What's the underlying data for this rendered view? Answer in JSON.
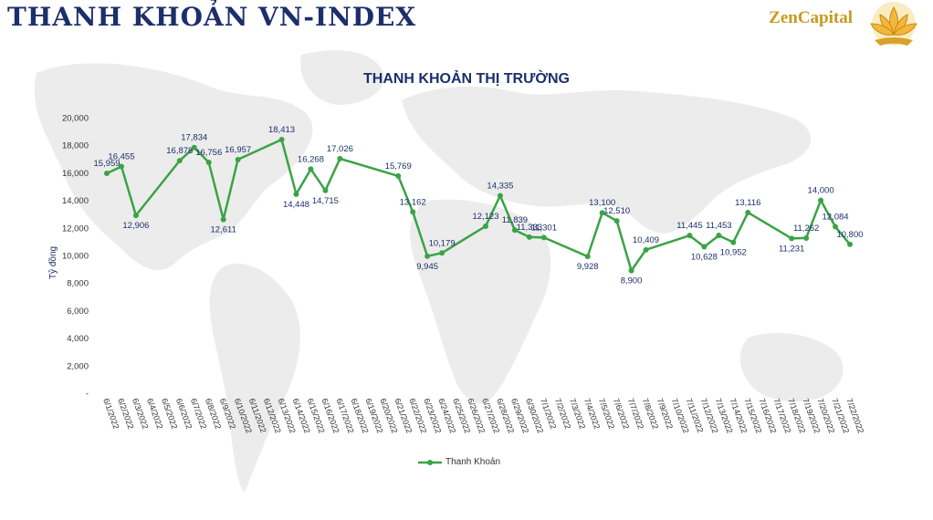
{
  "header": {
    "title": "THANH KHOẢN VN-INDEX",
    "brand": "ZenCapital",
    "logo_icon": "lotus-icon"
  },
  "colors": {
    "line": "#3aa346",
    "title": "#1c2f6b",
    "brand": "#c99a1e",
    "map": "#ececec"
  },
  "chart_data": {
    "type": "line",
    "title": "THANH KHOẢN THỊ TRƯỜNG",
    "ylabel": "Tỷ đồng",
    "xlabel": "",
    "ylim": [
      0,
      20000
    ],
    "yticks": [
      0,
      2000,
      4000,
      6000,
      8000,
      10000,
      12000,
      14000,
      16000,
      18000,
      20000
    ],
    "ytick_labels": [
      "-",
      "2,000",
      "4,000",
      "6,000",
      "8,000",
      "10,000",
      "12,000",
      "14,000",
      "16,000",
      "18,000",
      "20,000"
    ],
    "grid": false,
    "legend_position": "bottom",
    "categories": [
      "6/1/2022",
      "6/2/2022",
      "6/3/2022",
      "6/4/2022",
      "6/5/2022",
      "6/6/2022",
      "6/7/2022",
      "6/8/2022",
      "6/9/2022",
      "6/10/2022",
      "6/11/2022",
      "6/12/2022",
      "6/13/2022",
      "6/14/2022",
      "6/15/2022",
      "6/16/2022",
      "6/17/2022",
      "6/18/2022",
      "6/19/2022",
      "6/20/2022",
      "6/21/2022",
      "6/22/2022",
      "6/23/2022",
      "6/24/2022",
      "6/25/2022",
      "6/26/2022",
      "6/27/2022",
      "6/28/2022",
      "6/29/2022",
      "6/30/2022",
      "7/1/2022",
      "7/2/2022",
      "7/3/2022",
      "7/4/2022",
      "7/5/2022",
      "7/6/2022",
      "7/7/2022",
      "7/8/2022",
      "7/9/2022",
      "7/10/2022",
      "7/11/2022",
      "7/12/2022",
      "7/13/2022",
      "7/14/2022",
      "7/15/2022",
      "7/16/2022",
      "7/17/2022",
      "7/18/2022",
      "7/19/2022",
      "7/20/2022",
      "7/21/2022",
      "7/22/2022"
    ],
    "series": [
      {
        "name": "Thanh Khoản",
        "points": [
          {
            "x": "6/1/2022",
            "y": 15959,
            "label": "15,959"
          },
          {
            "x": "6/2/2022",
            "y": 16455,
            "label": "16,455"
          },
          {
            "x": "6/3/2022",
            "y": 12906,
            "label": "12,906"
          },
          {
            "x": "6/6/2022",
            "y": 16878,
            "label": "16,878"
          },
          {
            "x": "6/7/2022",
            "y": 17834,
            "label": "17,834"
          },
          {
            "x": "6/8/2022",
            "y": 16756,
            "label": "16,756"
          },
          {
            "x": "6/9/2022",
            "y": 12611,
            "label": "12,611"
          },
          {
            "x": "6/10/2022",
            "y": 16957,
            "label": "16,957"
          },
          {
            "x": "6/13/2022",
            "y": 18413,
            "label": "18,413"
          },
          {
            "x": "6/14/2022",
            "y": 14448,
            "label": "14,448"
          },
          {
            "x": "6/15/2022",
            "y": 16268,
            "label": "16,268"
          },
          {
            "x": "6/16/2022",
            "y": 14715,
            "label": "14,715"
          },
          {
            "x": "6/17/2022",
            "y": 17026,
            "label": "17,026"
          },
          {
            "x": "6/21/2022",
            "y": 15769,
            "label": "15,769"
          },
          {
            "x": "6/22/2022",
            "y": 13162,
            "label": "13,162"
          },
          {
            "x": "6/23/2022",
            "y": 9945,
            "label": "9,945"
          },
          {
            "x": "6/24/2022",
            "y": 10179,
            "label": "10,179"
          },
          {
            "x": "6/27/2022",
            "y": 12123,
            "label": "12,123"
          },
          {
            "x": "6/28/2022",
            "y": 14335,
            "label": "14,335"
          },
          {
            "x": "6/29/2022",
            "y": 11839,
            "label": "11,839"
          },
          {
            "x": "6/30/2022",
            "y": 11333,
            "label": "11,333"
          },
          {
            "x": "7/1/2022",
            "y": 11301,
            "label": "11,301"
          },
          {
            "x": "7/4/2022",
            "y": 9928,
            "label": "9,928"
          },
          {
            "x": "7/5/2022",
            "y": 13100,
            "label": "13,100"
          },
          {
            "x": "7/6/2022",
            "y": 12510,
            "label": "12,510"
          },
          {
            "x": "7/7/2022",
            "y": 8900,
            "label": "8,900"
          },
          {
            "x": "7/8/2022",
            "y": 10409,
            "label": "10,409"
          },
          {
            "x": "7/11/2022",
            "y": 11445,
            "label": "11,445"
          },
          {
            "x": "7/12/2022",
            "y": 10628,
            "label": "10,628"
          },
          {
            "x": "7/13/2022",
            "y": 11453,
            "label": "11,453"
          },
          {
            "x": "7/14/2022",
            "y": 10952,
            "label": "10,952"
          },
          {
            "x": "7/15/2022",
            "y": 13116,
            "label": "13,116"
          },
          {
            "x": "7/18/2022",
            "y": 11231,
            "label": "11,231"
          },
          {
            "x": "7/19/2022",
            "y": 11262,
            "label": "11,262"
          },
          {
            "x": "7/20/2022",
            "y": 14000,
            "label": "14,000"
          },
          {
            "x": "7/21/2022",
            "y": 12084,
            "label": "12,084"
          },
          {
            "x": "7/22/2022",
            "y": 10800,
            "label": "10,800"
          }
        ]
      }
    ]
  }
}
